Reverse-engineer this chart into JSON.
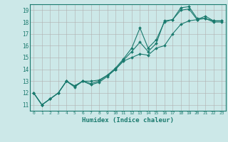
{
  "xlabel": "Humidex (Indice chaleur)",
  "ylabel": "",
  "background_color": "#cce8e8",
  "grid_color": "#b0b0b0",
  "line_color": "#1a7a6e",
  "xlim": [
    -0.5,
    23.5
  ],
  "ylim": [
    10.5,
    19.5
  ],
  "xticks": [
    0,
    1,
    2,
    3,
    4,
    5,
    6,
    7,
    8,
    9,
    10,
    11,
    12,
    13,
    14,
    15,
    16,
    17,
    18,
    19,
    20,
    21,
    22,
    23
  ],
  "yticks": [
    11,
    12,
    13,
    14,
    15,
    16,
    17,
    18,
    19
  ],
  "series": [
    [
      12.0,
      11.0,
      11.5,
      12.0,
      13.0,
      12.5,
      13.0,
      12.8,
      13.0,
      13.5,
      14.0,
      14.8,
      15.5,
      16.3,
      15.5,
      16.2,
      18.1,
      18.2,
      19.2,
      19.3,
      18.3,
      18.3,
      18.1,
      18.1
    ],
    [
      12.0,
      11.0,
      11.5,
      12.0,
      13.0,
      12.6,
      13.0,
      13.0,
      13.1,
      13.5,
      14.1,
      14.9,
      15.8,
      17.5,
      15.8,
      16.5,
      18.0,
      18.2,
      19.0,
      19.1,
      18.2,
      18.3,
      18.0,
      18.0
    ],
    [
      12.0,
      11.0,
      11.5,
      12.0,
      13.0,
      12.6,
      13.0,
      12.7,
      12.9,
      13.4,
      14.0,
      14.7,
      15.0,
      15.3,
      15.2,
      15.8,
      16.0,
      17.0,
      17.8,
      18.1,
      18.2,
      18.5,
      18.1,
      18.1
    ]
  ]
}
